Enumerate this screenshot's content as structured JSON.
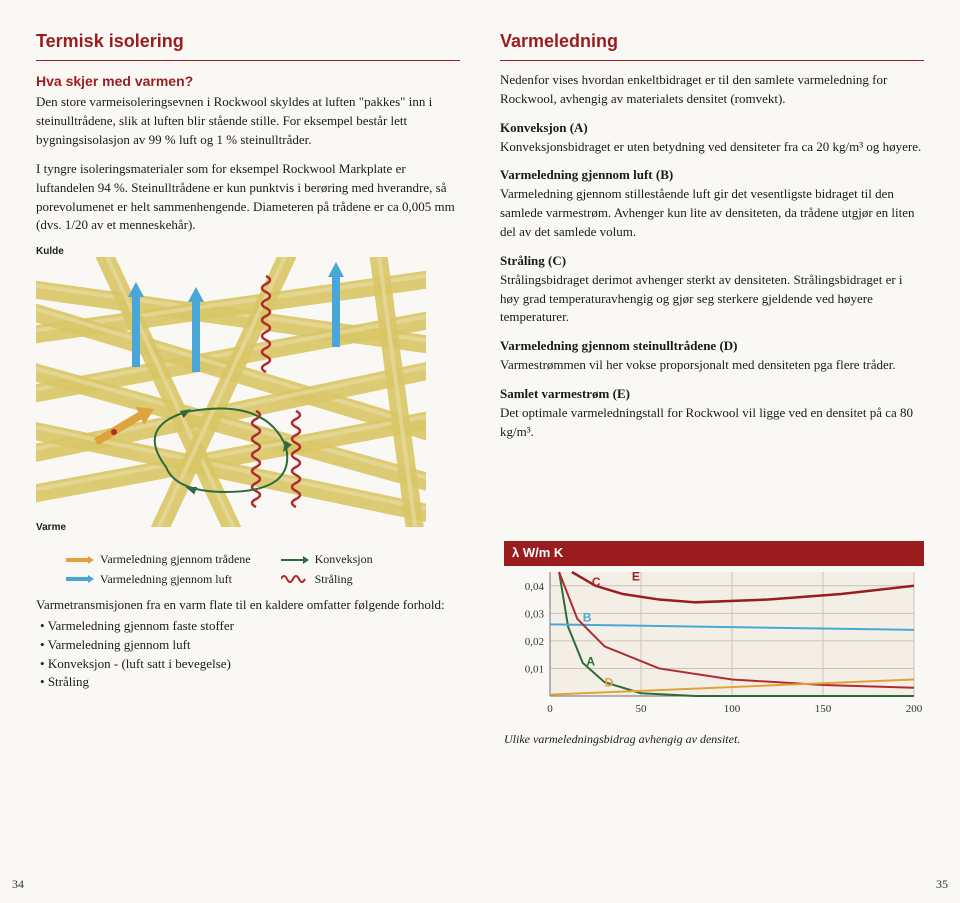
{
  "left": {
    "mainTitle": "Termisk isolering",
    "subTitle": "Hva skjer med varmen?",
    "p1": "Den store varmeisoleringsevnen i Rockwool skyldes at luften \"pakkes\" inn i steinulltrådene, slik at luften blir stående stille. For eksempel består lett bygningsisolasjon av 99 % luft og 1 % steinulltråder.",
    "p2": "I tyngre isoleringsmaterialer som for eksempel Rockwool Markplate er luftandelen 94 %. Steinulltrådene er kun punktvis i berøring med hverandre, så porevolumenet er helt sammenhengende. Diameteren på trådene er ca 0,005 mm (dvs. 1/20 av et menneskehår).",
    "labelKulde": "Kulde",
    "labelVarme": "Varme",
    "diagram": {
      "strandColor": "#d9c766",
      "strandHighlight": "#e8dba0",
      "bg": "#faf8f5",
      "arrowBlue": "#4aa6d6",
      "arrowOrange": "#dfa33b",
      "waveRed": "#b02a2e",
      "loopGreen": "#2f6b3a"
    },
    "legend": {
      "item1": "Varmeledning gjennom trådene",
      "item2": "Varmeledning gjennom luft",
      "item3": "Konveksjon",
      "item4": "Stråling"
    },
    "bottomIntro": "Varmetransmisjonen fra en varm flate til en kaldere omfatter følgende forhold:",
    "bullets": [
      "Varmeledning gjennom faste stoffer",
      "Varmeledning gjennom luft",
      "Konveksjon - (luft satt i bevegelse)",
      "Stråling"
    ]
  },
  "right": {
    "title": "Varmeledning",
    "intro": "Nedenfor vises hvordan enkeltbidraget er til den samlete varmeledning for Rockwool, avhengig av materialets densitet (romvekt).",
    "paras": [
      {
        "t": "Konveksjon (A)",
        "b": "Konveksjonsbidraget er uten betydning ved densiteter fra ca 20 kg/m³ og høyere."
      },
      {
        "t": "Varmeledning gjennom luft (B)",
        "b": "Varmeledning gjennom stillestående luft gir det vesentligste bidraget til den samlede varmestrøm. Avhenger kun lite av densiteten, da trådene utgjør en liten del av det samlede volum."
      },
      {
        "t": "Stråling (C)",
        "b": "Strålingsbidraget derimot avhenger sterkt av densiteten. Strålingsbidraget er i høy grad temperaturavhengig og gjør seg sterkere gjeldende ved høyere temperaturer."
      },
      {
        "t": "Varmeledning gjennom steinulltrådene (D)",
        "b": "Varmestrømmen vil her vokse proporsjonalt med densiteten pga flere tråder."
      },
      {
        "t": "Samlet varmestrøm (E)",
        "b": "Det optimale varmeledningstall for Rockwool vil ligge ved en densitet på ca 80 kg/m³."
      }
    ],
    "chart": {
      "titleBar": "λ W/m K",
      "yticks": [
        "0,04",
        "0,03",
        "0,02",
        "0,01"
      ],
      "xticks": [
        "0",
        "50",
        "100",
        "150",
        "200"
      ],
      "xmax": 200,
      "ymax": 0.045,
      "series": {
        "A": {
          "color": "#2f6b3a",
          "pts": [
            [
              5,
              0.045
            ],
            [
              10,
              0.025
            ],
            [
              18,
              0.012
            ],
            [
              30,
              0.005
            ],
            [
              50,
              0.001
            ],
            [
              80,
              0
            ],
            [
              200,
              0
            ]
          ]
        },
        "B": {
          "color": "#4aa6d6",
          "pts": [
            [
              0,
              0.026
            ],
            [
              200,
              0.024
            ]
          ]
        },
        "C": {
          "color": "#b02a2e",
          "pts": [
            [
              5,
              0.045
            ],
            [
              15,
              0.028
            ],
            [
              30,
              0.018
            ],
            [
              60,
              0.01
            ],
            [
              100,
              0.006
            ],
            [
              150,
              0.004
            ],
            [
              200,
              0.003
            ]
          ]
        },
        "D": {
          "color": "#dfa33b",
          "pts": [
            [
              0,
              0.0005
            ],
            [
              200,
              0.006
            ]
          ]
        },
        "E": {
          "color": "#9b1c1f",
          "pts": [
            [
              12,
              0.045
            ],
            [
              25,
              0.04
            ],
            [
              40,
              0.037
            ],
            [
              60,
              0.035
            ],
            [
              80,
              0.034
            ],
            [
              120,
              0.035
            ],
            [
              160,
              0.037
            ],
            [
              200,
              0.04
            ]
          ]
        }
      },
      "labelPositions": {
        "A": [
          20,
          0.011
        ],
        "B": [
          18,
          0.027
        ],
        "C": [
          23,
          0.04
        ],
        "D": [
          30,
          0.0035
        ],
        "E": [
          45,
          0.042
        ]
      },
      "gridColor": "#c9c4bb",
      "bg": "#f3efe7",
      "caption": "Ulike varmeledningsbidrag avhengig av densitet."
    }
  },
  "pageLeft": "34",
  "pageRight": "35"
}
